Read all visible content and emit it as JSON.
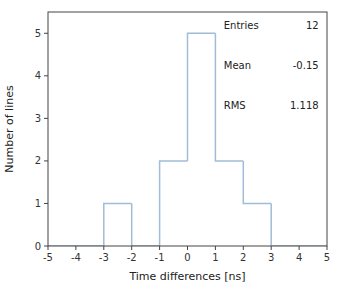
{
  "chart_data": {
    "type": "histogram",
    "bins": [
      -5,
      -4,
      -3,
      -2,
      -1,
      0,
      1,
      2,
      3,
      4,
      5
    ],
    "values": [
      0,
      0,
      1,
      0,
      2,
      5,
      2,
      1,
      0,
      0
    ],
    "color": "#a0bcd8",
    "xlabel": "Time differences [ns]",
    "ylabel": "Number of lines",
    "xlim": [
      -5,
      5
    ],
    "ylim": [
      0,
      5.5
    ],
    "xticks": [
      -5,
      -4,
      -3,
      -2,
      -1,
      0,
      1,
      2,
      3,
      4,
      5
    ],
    "yticks": [
      0,
      1,
      2,
      3,
      4,
      5
    ],
    "grid": false,
    "annotations": [
      {
        "text": "Entries",
        "value": 12
      },
      {
        "text": "Mean",
        "value": -0.15
      },
      {
        "text": "RMS",
        "value": 1.118
      }
    ]
  }
}
